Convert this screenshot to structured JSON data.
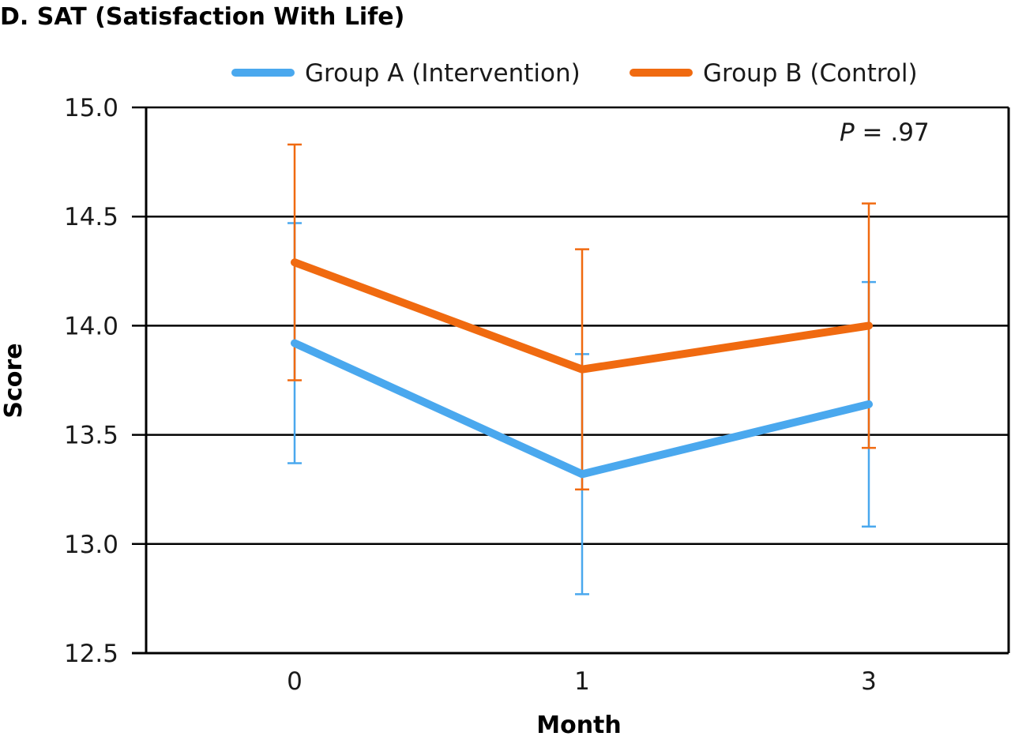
{
  "chart_data": {
    "type": "line",
    "title": "D. SAT (Satisfaction With Life)",
    "xlabel": "Month",
    "ylabel": "Score",
    "categories": [
      "0",
      "1",
      "3"
    ],
    "ylim": [
      12.5,
      15.0
    ],
    "yticks": [
      "12.5",
      "13.0",
      "13.5",
      "14.0",
      "14.5",
      "15.0"
    ],
    "grid": true,
    "legend_position": "top",
    "annotation": {
      "p_symbol": "P",
      "p_rest": " = .97"
    },
    "series": [
      {
        "name": "Group A (Intervention)",
        "color": "#4aa8ee",
        "values": [
          13.92,
          13.32,
          13.64
        ],
        "error_low": [
          13.37,
          12.77,
          13.08
        ],
        "error_high": [
          14.47,
          13.87,
          14.2
        ]
      },
      {
        "name": "Group B (Control)",
        "color": "#f06a10",
        "values": [
          14.29,
          13.8,
          14.0
        ],
        "error_low": [
          13.75,
          13.25,
          13.44
        ],
        "error_high": [
          14.83,
          14.35,
          14.56
        ]
      }
    ]
  }
}
